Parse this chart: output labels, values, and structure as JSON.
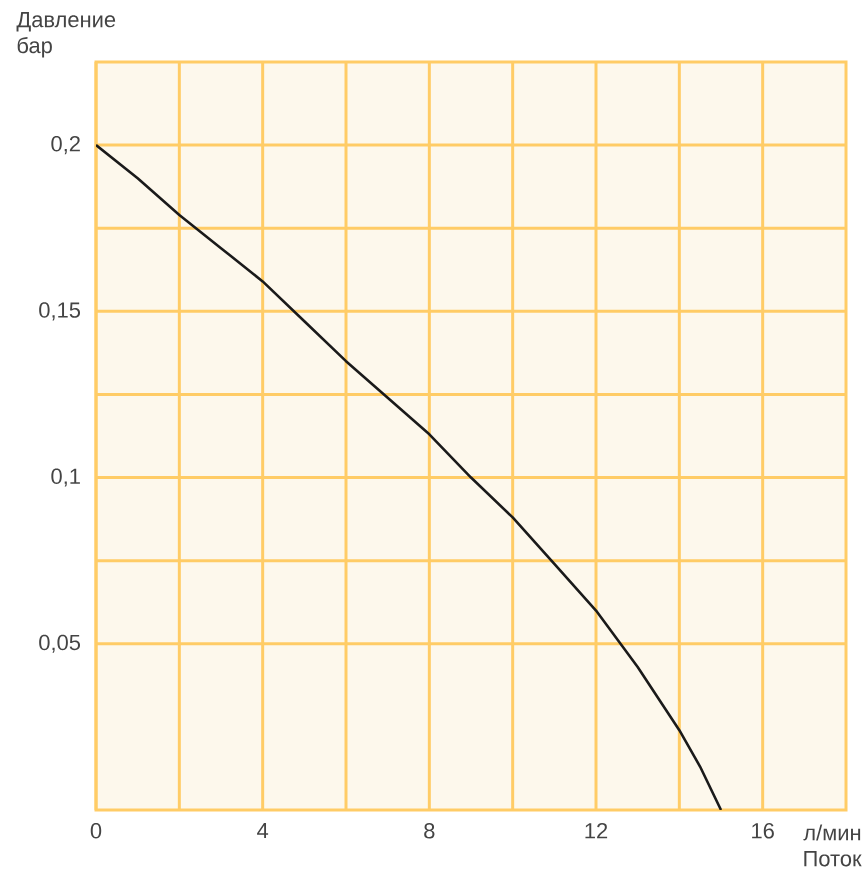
{
  "chart_data": {
    "type": "line",
    "xlabel": "л/мин Поток",
    "ylabel": "Давление бар",
    "x": [
      0,
      1,
      2,
      3,
      4,
      5,
      6,
      7,
      8,
      9,
      10,
      11,
      12,
      13,
      14,
      14.5,
      15
    ],
    "series": [
      {
        "color": "#1a1a1a",
        "values": [
          0.2,
          0.19,
          0.179,
          0.169,
          0.159,
          0.147,
          0.135,
          0.124,
          0.113,
          0.1,
          0.088,
          0.074,
          0.06,
          0.043,
          0.024,
          0.013,
          0
        ]
      }
    ],
    "xlim": [
      0,
      18
    ],
    "ylim": [
      0,
      0.225
    ],
    "xticks": [
      0,
      4,
      8,
      12,
      16
    ],
    "yticks": [
      {
        "value": 0.05,
        "label": "0,05"
      },
      {
        "value": 0.1,
        "label": "0,1"
      },
      {
        "value": 0.15,
        "label": "0,15"
      },
      {
        "value": 0.2,
        "label": "0,2"
      }
    ],
    "grid": true,
    "marker": "none",
    "line_style": "solid"
  }
}
